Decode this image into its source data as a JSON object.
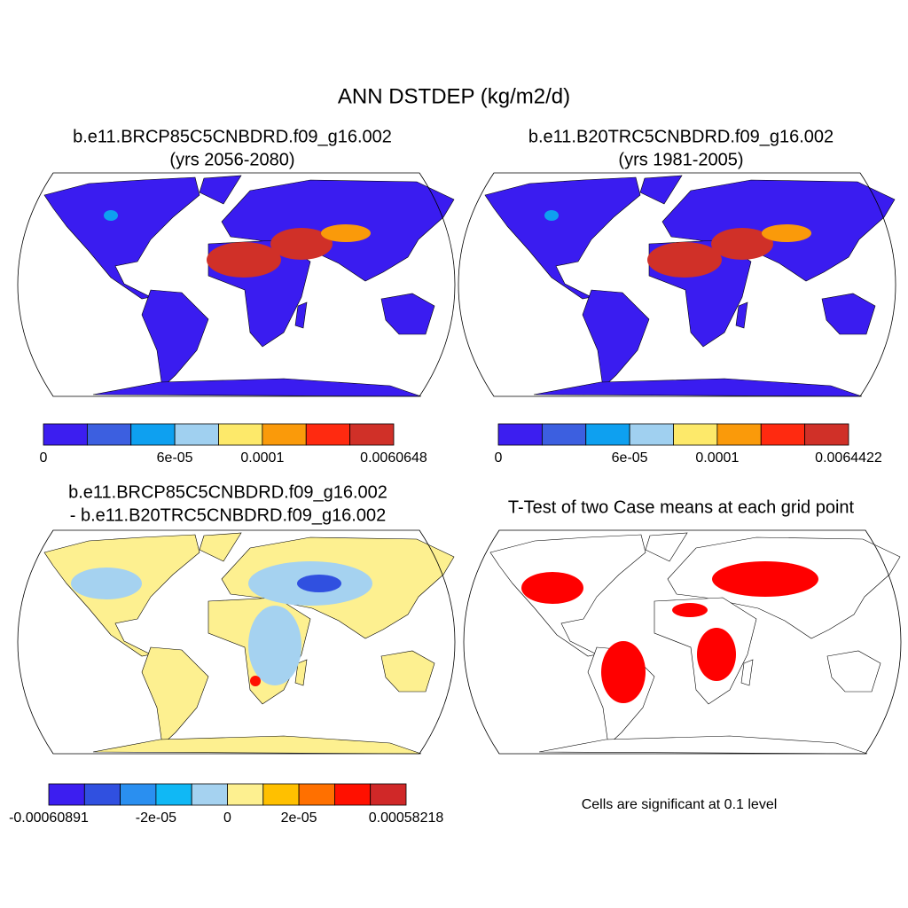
{
  "title": "ANN DSTDEP (kg/m2/d)",
  "panels": [
    {
      "title": [
        "b.e11.BRCP85C5CNBDRD.f09_g16.002",
        "(yrs 2056-2080)"
      ],
      "colorbar": {
        "colors": [
          "#3c1ef0",
          "#3c5fe0",
          "#0ea0f0",
          "#a0d0f0",
          "#fde96a",
          "#fa9a0a",
          "#ff2a10",
          "#d03028"
        ],
        "labels": [
          "0",
          null,
          null,
          "6e-05",
          null,
          "0.0001",
          null,
          null,
          "0.0060648"
        ]
      }
    },
    {
      "title": [
        "b.e11.B20TRC5CNBDRD.f09_g16.002",
        "(yrs 1981-2005)"
      ],
      "colorbar": {
        "colors": [
          "#3c1ef0",
          "#3c5fe0",
          "#0ea0f0",
          "#a0d0f0",
          "#fde96a",
          "#fa9a0a",
          "#ff2a10",
          "#d03028"
        ],
        "labels": [
          "0",
          null,
          null,
          "6e-05",
          null,
          "0.0001",
          null,
          null,
          "0.0064422"
        ]
      }
    },
    {
      "title": [
        "b.e11.BRCP85C5CNBDRD.f09_g16.002",
        "- b.e11.B20TRC5CNBDRD.f09_g16.002"
      ],
      "colorbar": {
        "colors": [
          "#3c1ef0",
          "#3050e0",
          "#2a8ff0",
          "#10b8f5",
          "#a5d2f0",
          "#fdf090",
          "#ffc000",
          "#ff7000",
          "#ff1000",
          "#d02828"
        ],
        "labels": [
          "-0.00060891",
          null,
          null,
          "-2e-05",
          null,
          "0",
          null,
          "2e-05",
          null,
          null,
          "0.00058218"
        ]
      }
    },
    {
      "title": [
        "T-Test of two Case means at each grid point"
      ],
      "note": "Cells are significant at 0.1 level"
    }
  ]
}
